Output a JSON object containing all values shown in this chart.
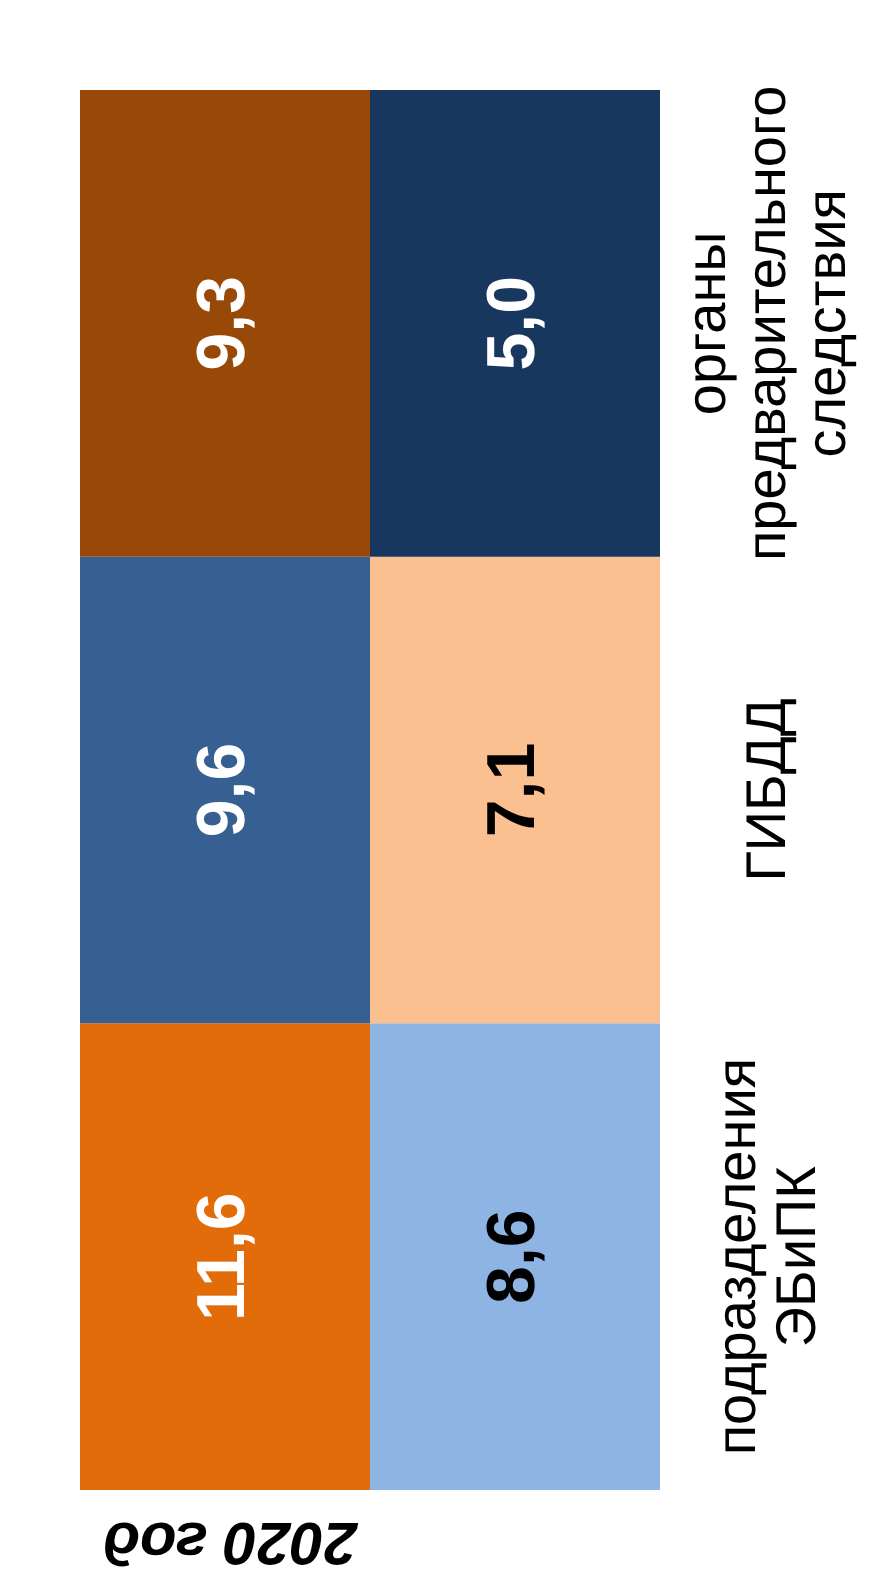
{
  "chart_data": {
    "type": "other",
    "title": "2020 год",
    "categories": [
      "подразделения ЭБиПК",
      "ГИБДД",
      "органы предварительного следствия"
    ],
    "series": [
      {
        "colors": [
          "#e36c0a",
          "#376092",
          "#984807"
        ],
        "values": [
          11.6,
          9.6,
          9.3
        ],
        "value_labels": [
          "11,6",
          "9,6",
          "9,3"
        ]
      },
      {
        "colors": [
          "#8eb4e3",
          "#fac090",
          "#17375e"
        ],
        "values": [
          8.6,
          7.1,
          5.0
        ],
        "value_labels": [
          "8,6",
          "7,1",
          "5,0"
        ]
      }
    ]
  }
}
